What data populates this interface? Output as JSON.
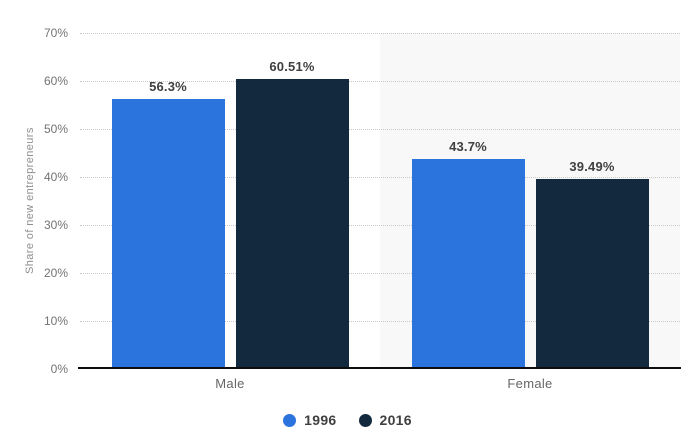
{
  "chart_data": {
    "type": "bar",
    "title": "",
    "categories": [
      "Male",
      "Female"
    ],
    "series": [
      {
        "name": "1996",
        "color": "#2b74dd",
        "values": [
          56.3,
          43.7
        ],
        "labels": [
          "56.3%",
          "43.7%"
        ]
      },
      {
        "name": "2016",
        "color": "#12293e",
        "values": [
          60.51,
          39.49
        ],
        "labels": [
          "60.51%",
          "39.49%"
        ]
      }
    ],
    "xlabel": "",
    "ylabel": "Share of new entrepreneurs",
    "ylim": [
      0,
      70
    ],
    "ytick_step": 10,
    "yticks": [
      {
        "label": "0%",
        "value": 0
      },
      {
        "label": "10%",
        "value": 10
      },
      {
        "label": "20%",
        "value": 20
      },
      {
        "label": "30%",
        "value": 30
      },
      {
        "label": "40%",
        "value": 40
      },
      {
        "label": "50%",
        "value": 50
      },
      {
        "label": "60%",
        "value": 60
      },
      {
        "label": "70%",
        "value": 70
      }
    ],
    "grid": "horizontal-dotted",
    "legend_position": "bottom",
    "alternating_band_color": "#f8f8f8"
  },
  "colors": {
    "background": "#ffffff",
    "series_1996": "#2b74dd",
    "series_2016": "#12293e",
    "band_alt": "#f8f8f8",
    "gridline": "#c9c9c9",
    "axis_line": "#0d0d0d",
    "tick_text": "#737373",
    "value_text": "#404040",
    "category_text": "#666666",
    "ylabel_text": "#8f8f8f"
  }
}
